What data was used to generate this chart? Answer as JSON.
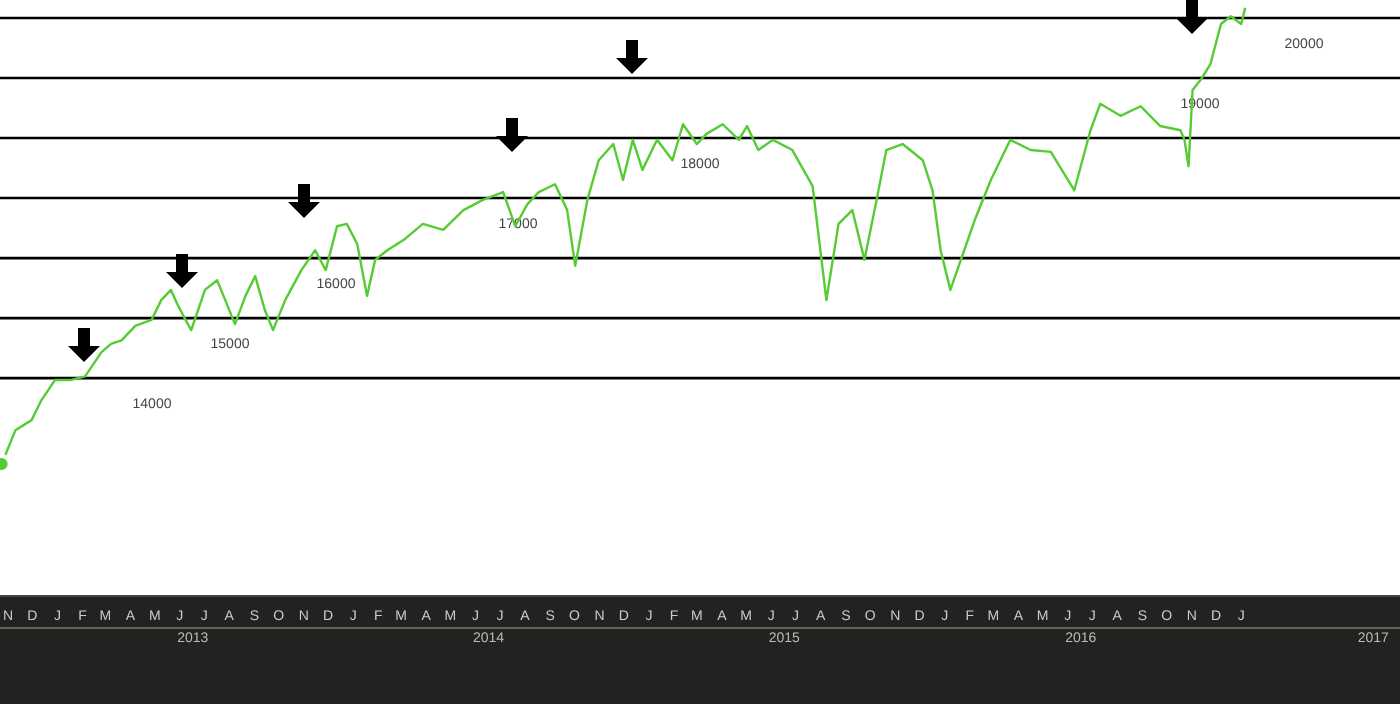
{
  "chart_data": {
    "type": "line",
    "x": [
      "2012-11-08",
      "2012-11-25",
      "2012-12-15",
      "2012-12-27",
      "2013-01-13",
      "2013-02-02",
      "2013-02-19",
      "2013-03-11",
      "2013-03-23",
      "2013-04-05",
      "2013-04-22",
      "2013-05-12",
      "2013-05-24",
      "2013-06-05",
      "2013-06-13",
      "2013-06-23",
      "2013-06-30",
      "2013-07-17",
      "2013-08-01",
      "2013-08-11",
      "2013-08-23",
      "2013-09-05",
      "2013-09-17",
      "2013-09-29",
      "2013-10-09",
      "2013-10-24",
      "2013-11-13",
      "2013-11-30",
      "2013-12-13",
      "2013-12-27",
      "2014-01-08",
      "2014-01-21",
      "2014-02-02",
      "2014-02-12",
      "2014-02-27",
      "2014-03-19",
      "2014-04-12",
      "2014-05-07",
      "2014-06-01",
      "2014-06-25",
      "2014-07-20",
      "2014-08-04",
      "2014-08-19",
      "2014-09-02",
      "2014-09-22",
      "2014-10-07",
      "2014-10-17",
      "2014-11-01",
      "2014-11-15",
      "2014-12-03",
      "2014-12-15",
      "2014-12-27",
      "2015-01-08",
      "2015-01-26",
      "2015-02-14",
      "2015-02-27",
      "2015-03-16",
      "2015-03-28",
      "2015-04-17",
      "2015-05-07",
      "2015-05-17",
      "2015-05-31",
      "2015-06-18",
      "2015-07-12",
      "2015-08-06",
      "2015-08-23",
      "2015-09-07",
      "2015-09-24",
      "2015-10-09",
      "2015-10-24",
      "2015-11-05",
      "2015-11-25",
      "2015-12-20",
      "2016-01-01",
      "2016-01-11",
      "2016-01-23",
      "2016-02-05",
      "2016-02-22",
      "2016-03-13",
      "2016-04-06",
      "2016-05-01",
      "2016-05-26",
      "2016-06-24",
      "2016-07-14",
      "2016-07-26",
      "2016-08-20",
      "2016-09-14",
      "2016-10-08",
      "2016-11-02",
      "2016-11-07",
      "2016-11-12",
      "2016-11-17",
      "2016-11-27",
      "2016-12-09",
      "2016-12-22",
      "2017-01-03",
      "2017-01-16",
      "2017-01-21"
    ],
    "series": [
      {
        "color": "#55cc33",
        "values": [
          12570,
          13130,
          13300,
          13630,
          13970,
          13970,
          14030,
          14430,
          14570,
          14630,
          14870,
          14970,
          15300,
          15470,
          15230,
          14970,
          14800,
          15470,
          15630,
          15300,
          14900,
          15370,
          15700,
          15130,
          14800,
          15300,
          15800,
          16130,
          15800,
          16530,
          16570,
          16230,
          15370,
          15970,
          16130,
          16300,
          16570,
          16470,
          16800,
          16970,
          17100,
          16530,
          16900,
          17100,
          17230,
          16800,
          15870,
          16970,
          17630,
          17900,
          17300,
          17970,
          17470,
          17970,
          17630,
          18230,
          17900,
          18070,
          18230,
          17970,
          18200,
          17800,
          17970,
          17800,
          17200,
          15300,
          16570,
          16800,
          15970,
          16970,
          17800,
          17900,
          17630,
          17130,
          16130,
          15470,
          15970,
          16630,
          17300,
          17970,
          17800,
          17770,
          17130,
          18130,
          18570,
          18370,
          18530,
          18200,
          18130,
          17970,
          17530,
          18800,
          18970,
          19230,
          19900,
          20030,
          19900,
          20170
        ]
      }
    ],
    "xlim": [
      "2012-11-06",
      "2017-07-31"
    ],
    "ylim": [
      10370,
      20300
    ],
    "tick_labels": "x",
    "marker": "none",
    "annotations": [
      "N",
      "D",
      "J",
      "F",
      "M",
      "A",
      "M",
      "J",
      "J",
      "A",
      "S",
      "O",
      "N",
      "D",
      "J",
      "F",
      "M",
      "A",
      "M",
      "J",
      "J",
      "A",
      "S",
      "O",
      "N",
      "D",
      "J",
      "F",
      "M",
      "A",
      "M",
      "J",
      "J",
      "A",
      "S",
      "O",
      "N",
      "D",
      "J",
      "F",
      "M",
      "A",
      "M",
      "J",
      "J",
      "A",
      "S",
      "O",
      "N",
      "D",
      "J"
    ],
    "xticks": [
      {
        "value": "2013-07-02",
        "label": "2013"
      },
      {
        "value": "2014-07-02",
        "label": "2014"
      },
      {
        "value": "2015-07-02",
        "label": "2015"
      },
      {
        "value": "2016-07-02",
        "label": "2016"
      },
      {
        "value": "2017-06-28",
        "label": "2017"
      }
    ],
    "ref_lines": [
      {
        "axis": "y",
        "value": 14000,
        "label": "14000",
        "color": "#000000"
      },
      {
        "axis": "y",
        "value": 15000,
        "label": "15000",
        "color": "#000000"
      },
      {
        "axis": "y",
        "value": 16000,
        "label": "16000",
        "color": "#000000"
      },
      {
        "axis": "y",
        "value": 17000,
        "label": "17000",
        "color": "#000000"
      },
      {
        "axis": "y",
        "value": 18000,
        "label": "18000",
        "color": "#000000"
      },
      {
        "axis": "y",
        "value": 19000,
        "label": "19000",
        "color": "#000000"
      },
      {
        "axis": "y",
        "value": 20000,
        "label": "20000",
        "color": "#000000"
      }
    ]
  }
}
